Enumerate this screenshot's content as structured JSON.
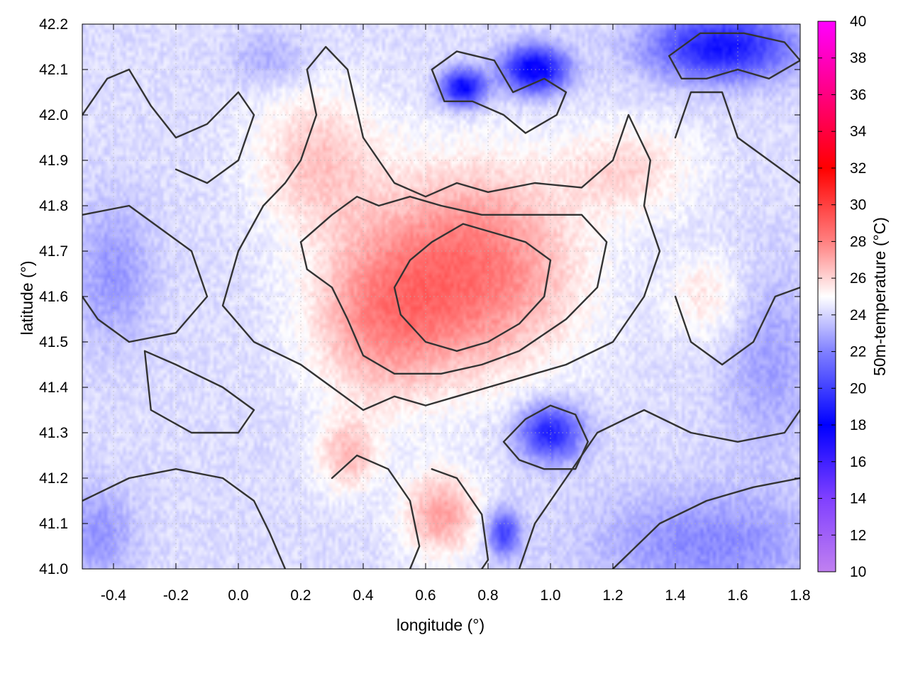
{
  "chart_data": {
    "type": "heatmap",
    "title": "",
    "xlabel": "longitude (°)",
    "ylabel": "latitude (°)",
    "colorbar_label": "50m-temperature (°C)",
    "xlim": [
      -0.5,
      1.8
    ],
    "ylim": [
      41.0,
      42.2
    ],
    "clim": [
      10,
      40
    ],
    "x_ticks": [
      -0.4,
      -0.2,
      0.0,
      0.2,
      0.4,
      0.6,
      0.8,
      1.0,
      1.2,
      1.4,
      1.6,
      1.8
    ],
    "x_tick_labels": [
      "-0.4",
      "-0.2",
      "0.0",
      "0.2",
      "0.4",
      "0.6",
      "0.8",
      "1.0",
      "1.2",
      "1.4",
      "1.6",
      "1.8"
    ],
    "y_ticks": [
      41.0,
      41.1,
      41.2,
      41.3,
      41.4,
      41.5,
      41.6,
      41.7,
      41.8,
      41.9,
      42.0,
      42.1,
      42.2
    ],
    "y_tick_labels": [
      "41.0",
      "41.1",
      "41.2",
      "41.3",
      "41.4",
      "41.5",
      "41.6",
      "41.7",
      "41.8",
      "41.9",
      "42.0",
      "42.1",
      "42.2"
    ],
    "cb_ticks": [
      10,
      12,
      14,
      16,
      18,
      20,
      22,
      24,
      26,
      28,
      30,
      32,
      34,
      36,
      38,
      40
    ],
    "cb_tick_labels": [
      "10",
      "12",
      "14",
      "16",
      "18",
      "20",
      "22",
      "24",
      "26",
      "28",
      "30",
      "32",
      "34",
      "36",
      "38",
      "40"
    ],
    "colormap": [
      [
        10,
        "#c080f0"
      ],
      [
        14,
        "#8040ff"
      ],
      [
        18,
        "#0000ff"
      ],
      [
        22,
        "#8080ff"
      ],
      [
        25,
        "#ffffff"
      ],
      [
        28,
        "#ff8080"
      ],
      [
        32,
        "#ff0000"
      ],
      [
        36,
        "#ff0080"
      ],
      [
        40,
        "#ff00ff"
      ]
    ],
    "grid": true,
    "field_hotspots": [
      {
        "lon": 0.75,
        "lat": 41.66,
        "temp": 28.4,
        "sx": 0.32,
        "sy": 0.22
      },
      {
        "lon": 0.45,
        "lat": 41.55,
        "temp": 27.0,
        "sx": 0.22,
        "sy": 0.18
      },
      {
        "lon": 0.25,
        "lat": 41.9,
        "temp": 26.3,
        "sx": 0.2,
        "sy": 0.16
      },
      {
        "lon": 0.65,
        "lat": 41.12,
        "temp": 27.2,
        "sx": 0.12,
        "sy": 0.09
      },
      {
        "lon": 0.35,
        "lat": 41.25,
        "temp": 26.4,
        "sx": 0.1,
        "sy": 0.08
      },
      {
        "lon": 1.25,
        "lat": 41.88,
        "temp": 25.9,
        "sx": 0.22,
        "sy": 0.1
      },
      {
        "lon": 1.5,
        "lat": 41.6,
        "temp": 25.6,
        "sx": 0.12,
        "sy": 0.1
      },
      {
        "lon": 0.95,
        "lat": 42.1,
        "temp": 17.5,
        "sx": 0.1,
        "sy": 0.05
      },
      {
        "lon": 0.72,
        "lat": 42.06,
        "temp": 18.0,
        "sx": 0.07,
        "sy": 0.04
      },
      {
        "lon": 1.55,
        "lat": 42.15,
        "temp": 18.5,
        "sx": 0.22,
        "sy": 0.07
      },
      {
        "lon": 1.0,
        "lat": 41.3,
        "temp": 19.0,
        "sx": 0.1,
        "sy": 0.06
      },
      {
        "lon": 0.85,
        "lat": 41.08,
        "temp": 20.0,
        "sx": 0.05,
        "sy": 0.05
      },
      {
        "lon": 1.5,
        "lat": 41.05,
        "temp": 22.2,
        "sx": 0.35,
        "sy": 0.12
      },
      {
        "lon": -0.4,
        "lat": 41.65,
        "temp": 22.5,
        "sx": 0.12,
        "sy": 0.15
      },
      {
        "lon": -0.45,
        "lat": 41.08,
        "temp": 22.5,
        "sx": 0.12,
        "sy": 0.1
      },
      {
        "lon": 0.1,
        "lat": 42.12,
        "temp": 23.0,
        "sx": 0.12,
        "sy": 0.06
      },
      {
        "lon": 1.7,
        "lat": 41.45,
        "temp": 22.8,
        "sx": 0.15,
        "sy": 0.2
      }
    ],
    "field_base_temp": 24.2,
    "contours": [
      {
        "level": "outer",
        "points": [
          [
            0.2,
            41.9
          ],
          [
            0.25,
            42.0
          ],
          [
            0.22,
            42.1
          ],
          [
            0.28,
            42.15
          ],
          [
            0.35,
            42.1
          ],
          [
            0.4,
            41.95
          ],
          [
            0.5,
            41.85
          ],
          [
            0.6,
            41.82
          ],
          [
            0.7,
            41.85
          ],
          [
            0.8,
            41.83
          ],
          [
            0.95,
            41.85
          ],
          [
            1.1,
            41.84
          ],
          [
            1.2,
            41.9
          ],
          [
            1.25,
            42.0
          ],
          [
            1.32,
            41.9
          ],
          [
            1.3,
            41.8
          ],
          [
            1.35,
            41.7
          ],
          [
            1.3,
            41.6
          ],
          [
            1.2,
            41.5
          ],
          [
            1.05,
            41.45
          ],
          [
            0.9,
            41.42
          ],
          [
            0.8,
            41.4
          ],
          [
            0.7,
            41.38
          ],
          [
            0.6,
            41.36
          ],
          [
            0.5,
            41.38
          ],
          [
            0.4,
            41.35
          ],
          [
            0.3,
            41.4
          ],
          [
            0.2,
            41.45
          ],
          [
            0.05,
            41.5
          ],
          [
            -0.05,
            41.58
          ],
          [
            0.0,
            41.7
          ],
          [
            0.08,
            41.8
          ],
          [
            0.15,
            41.85
          ],
          [
            0.2,
            41.9
          ]
        ]
      },
      {
        "level": "mid",
        "points": [
          [
            0.2,
            41.72
          ],
          [
            0.3,
            41.78
          ],
          [
            0.38,
            41.82
          ],
          [
            0.45,
            41.8
          ],
          [
            0.55,
            41.82
          ],
          [
            0.65,
            41.8
          ],
          [
            0.78,
            41.78
          ],
          [
            0.95,
            41.78
          ],
          [
            1.1,
            41.78
          ],
          [
            1.18,
            41.72
          ],
          [
            1.15,
            41.62
          ],
          [
            1.05,
            41.55
          ],
          [
            0.9,
            41.48
          ],
          [
            0.78,
            41.45
          ],
          [
            0.65,
            41.43
          ],
          [
            0.5,
            41.43
          ],
          [
            0.4,
            41.47
          ],
          [
            0.35,
            41.55
          ],
          [
            0.3,
            41.62
          ],
          [
            0.22,
            41.66
          ],
          [
            0.2,
            41.72
          ]
        ]
      },
      {
        "level": "inner",
        "points": [
          [
            0.62,
            41.72
          ],
          [
            0.72,
            41.76
          ],
          [
            0.82,
            41.74
          ],
          [
            0.92,
            41.72
          ],
          [
            1.0,
            41.68
          ],
          [
            0.98,
            41.6
          ],
          [
            0.9,
            41.54
          ],
          [
            0.8,
            41.5
          ],
          [
            0.7,
            41.48
          ],
          [
            0.6,
            41.5
          ],
          [
            0.52,
            41.56
          ],
          [
            0.5,
            41.62
          ],
          [
            0.55,
            41.68
          ],
          [
            0.62,
            41.72
          ]
        ]
      },
      {
        "level": "cold-n",
        "points": [
          [
            0.62,
            42.1
          ],
          [
            0.7,
            42.14
          ],
          [
            0.82,
            42.12
          ],
          [
            0.88,
            42.05
          ],
          [
            0.98,
            42.08
          ],
          [
            1.05,
            42.05
          ],
          [
            1.02,
            42.0
          ],
          [
            0.92,
            41.96
          ],
          [
            0.85,
            42.0
          ],
          [
            0.75,
            42.03
          ],
          [
            0.66,
            42.03
          ],
          [
            0.62,
            42.1
          ]
        ]
      },
      {
        "level": "cold-ne",
        "points": [
          [
            1.38,
            42.13
          ],
          [
            1.48,
            42.18
          ],
          [
            1.62,
            42.18
          ],
          [
            1.75,
            42.16
          ],
          [
            1.8,
            42.12
          ],
          [
            1.7,
            42.08
          ],
          [
            1.6,
            42.1
          ],
          [
            1.5,
            42.08
          ],
          [
            1.42,
            42.08
          ],
          [
            1.38,
            42.13
          ]
        ]
      },
      {
        "level": "cold-se",
        "points": [
          [
            0.85,
            41.28
          ],
          [
            0.92,
            41.33
          ],
          [
            1.0,
            41.36
          ],
          [
            1.08,
            41.34
          ],
          [
            1.12,
            41.28
          ],
          [
            1.08,
            41.22
          ],
          [
            0.98,
            41.22
          ],
          [
            0.9,
            41.24
          ],
          [
            0.85,
            41.28
          ]
        ]
      },
      {
        "level": "south-east",
        "points": [
          [
            0.9,
            41.0
          ],
          [
            0.95,
            41.1
          ],
          [
            1.05,
            41.2
          ],
          [
            1.15,
            41.3
          ],
          [
            1.3,
            41.35
          ],
          [
            1.45,
            41.3
          ],
          [
            1.6,
            41.28
          ],
          [
            1.75,
            41.3
          ],
          [
            1.8,
            41.35
          ]
        ]
      },
      {
        "level": "south-east-2",
        "points": [
          [
            1.2,
            41.0
          ],
          [
            1.35,
            41.1
          ],
          [
            1.5,
            41.15
          ],
          [
            1.65,
            41.18
          ],
          [
            1.8,
            41.2
          ]
        ]
      },
      {
        "level": "west",
        "points": [
          [
            -0.5,
            41.78
          ],
          [
            -0.35,
            41.8
          ],
          [
            -0.25,
            41.75
          ],
          [
            -0.15,
            41.7
          ],
          [
            -0.1,
            41.6
          ],
          [
            -0.2,
            41.52
          ],
          [
            -0.35,
            41.5
          ],
          [
            -0.45,
            41.55
          ],
          [
            -0.5,
            41.6
          ]
        ]
      },
      {
        "level": "west-2",
        "points": [
          [
            -0.3,
            41.48
          ],
          [
            -0.2,
            41.45
          ],
          [
            -0.05,
            41.4
          ],
          [
            0.05,
            41.35
          ],
          [
            0.0,
            41.3
          ],
          [
            -0.15,
            41.3
          ],
          [
            -0.28,
            41.35
          ],
          [
            -0.3,
            41.48
          ]
        ]
      },
      {
        "level": "south-west",
        "points": [
          [
            -0.5,
            41.15
          ],
          [
            -0.35,
            41.2
          ],
          [
            -0.2,
            41.22
          ],
          [
            -0.05,
            41.2
          ],
          [
            0.05,
            41.15
          ],
          [
            0.1,
            41.08
          ],
          [
            0.15,
            41.0
          ]
        ]
      },
      {
        "level": "south-center",
        "points": [
          [
            0.3,
            41.2
          ],
          [
            0.38,
            41.25
          ],
          [
            0.48,
            41.22
          ],
          [
            0.55,
            41.15
          ],
          [
            0.58,
            41.05
          ],
          [
            0.55,
            41.0
          ]
        ]
      },
      {
        "level": "south-center-2",
        "points": [
          [
            0.62,
            41.22
          ],
          [
            0.7,
            41.2
          ],
          [
            0.78,
            41.12
          ],
          [
            0.8,
            41.02
          ],
          [
            0.78,
            41.0
          ]
        ]
      },
      {
        "level": "north-west",
        "points": [
          [
            -0.5,
            42.0
          ],
          [
            -0.42,
            42.08
          ],
          [
            -0.35,
            42.1
          ],
          [
            -0.28,
            42.02
          ],
          [
            -0.2,
            41.95
          ],
          [
            -0.1,
            41.98
          ],
          [
            0.0,
            42.05
          ],
          [
            0.05,
            42.0
          ],
          [
            0.0,
            41.9
          ],
          [
            -0.1,
            41.85
          ],
          [
            -0.2,
            41.88
          ]
        ]
      },
      {
        "level": "east",
        "points": [
          [
            1.4,
            41.95
          ],
          [
            1.45,
            42.05
          ],
          [
            1.55,
            42.05
          ],
          [
            1.6,
            41.95
          ],
          [
            1.7,
            41.9
          ],
          [
            1.8,
            41.85
          ]
        ]
      },
      {
        "level": "east-2",
        "points": [
          [
            1.4,
            41.6
          ],
          [
            1.45,
            41.5
          ],
          [
            1.55,
            41.45
          ],
          [
            1.65,
            41.5
          ],
          [
            1.72,
            41.6
          ],
          [
            1.8,
            41.62
          ]
        ]
      }
    ]
  }
}
